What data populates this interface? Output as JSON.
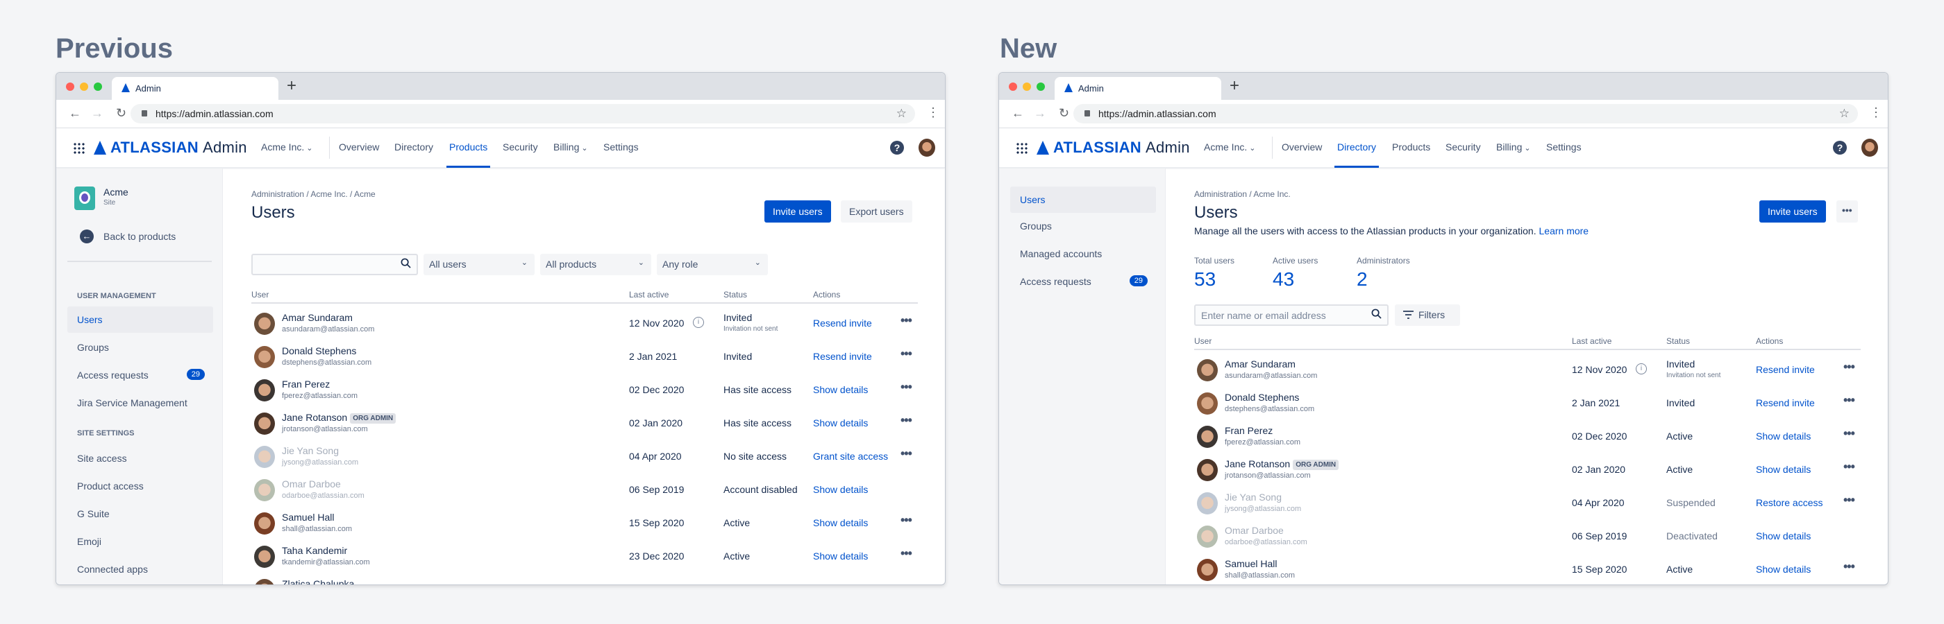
{
  "labels": {
    "previous": "Previous",
    "new": "New"
  },
  "browser": {
    "tab_title": "Admin",
    "new_tab": "+",
    "url": "https://admin.atlassian.com"
  },
  "header": {
    "logo": "ATLASSIAN",
    "logo_suffix": "Admin",
    "org": "Acme Inc.",
    "nav": [
      "Overview",
      "Directory",
      "Products",
      "Security",
      "Billing",
      "Settings"
    ],
    "help": "?"
  },
  "colors": {
    "brand": "#0052cc"
  },
  "previous": {
    "active_nav": "Products",
    "sidebar": {
      "site_name": "Acme",
      "site_type": "Site",
      "back": "Back to products",
      "section1": "USER MANAGEMENT",
      "items1": [
        "Users",
        "Groups",
        "Access requests",
        "Jira Service Management"
      ],
      "access_badge": "29",
      "section2": "SITE SETTINGS",
      "items2": [
        "Site access",
        "Product access",
        "G Suite",
        "Emoji",
        "Connected apps"
      ]
    },
    "breadcrumb": "Administration / Acme Inc. / Acme",
    "title": "Users",
    "invite": "Invite users",
    "export": "Export users",
    "search_value": "",
    "filters": [
      "All users",
      "All products",
      "Any role"
    ],
    "columns": [
      "User",
      "Last active",
      "Status",
      "Actions"
    ],
    "rows": [
      {
        "name": "Amar Sundaram",
        "email": "asundaram@atlassian.com",
        "last": "12 Nov 2020",
        "info": true,
        "status": "Invited",
        "sub": "Invitation not sent",
        "action": "Resend invite",
        "more": true,
        "color": "#6b4f3a"
      },
      {
        "name": "Donald Stephens",
        "email": "dstephens@atlassian.com",
        "last": "2 Jan 2021",
        "status": "Invited",
        "action": "Resend invite",
        "more": true,
        "color": "#8a5a3c"
      },
      {
        "name": "Fran Perez",
        "email": "fperez@atlassian.com",
        "last": "02 Dec 2020",
        "status": "Has site access",
        "action": "Show details",
        "more": true,
        "color": "#3b3532"
      },
      {
        "name": "Jane Rotanson",
        "badge": "ORG ADMIN",
        "email": "jrotanson@atlassian.com",
        "last": "02 Jan 2020",
        "status": "Has site access",
        "action": "Show details",
        "more": true,
        "color": "#4a3428"
      },
      {
        "name": "Jie Yan Song",
        "email": "jysong@atlassian.com",
        "last": "04 Apr 2020",
        "status": "No site access",
        "action": "Grant site access",
        "more": true,
        "dim": true,
        "color": "#8a9bb0"
      },
      {
        "name": "Omar Darboe",
        "email": "odarboe@atlassian.com",
        "last": "06 Sep 2019",
        "status": "Account disabled",
        "action": "Show details",
        "more": false,
        "dim": true,
        "color": "#7a8a70"
      },
      {
        "name": "Samuel Hall",
        "email": "shall@atlassian.com",
        "last": "15 Sep 2020",
        "status": "Active",
        "action": "Show details",
        "more": true,
        "color": "#7a3e24"
      },
      {
        "name": "Taha Kandemir",
        "email": "tkandemir@atlassian.com",
        "last": "23 Dec 2020",
        "status": "Active",
        "action": "Show details",
        "more": true,
        "color": "#3e3a36"
      },
      {
        "name": "Zlatica Chalupka",
        "email": "",
        "last": "",
        "status": "",
        "action": "",
        "more": false,
        "color": "#6b4a35"
      }
    ]
  },
  "new": {
    "active_nav": "Directory",
    "sidebar": {
      "items": [
        "Users",
        "Groups",
        "Managed accounts",
        "Access requests"
      ],
      "access_badge": "29"
    },
    "breadcrumb": "Administration / Acme Inc.",
    "title": "Users",
    "invite": "Invite users",
    "more": "•••",
    "description": "Manage all the users with access to the Atlassian products in your organization.",
    "learn_more": "Learn more",
    "stats": [
      {
        "label": "Total users",
        "value": "53"
      },
      {
        "label": "Active users",
        "value": "43"
      },
      {
        "label": "Administrators",
        "value": "2"
      }
    ],
    "search_placeholder": "Enter name or email address",
    "filters": "Filters",
    "columns": [
      "User",
      "Last active",
      "Status",
      "Actions"
    ],
    "rows": [
      {
        "name": "Amar Sundaram",
        "email": "asundaram@atlassian.com",
        "last": "12 Nov 2020",
        "info": true,
        "status": "Invited",
        "sub": "Invitation not sent",
        "action": "Resend invite",
        "more": true,
        "color": "#6b4f3a"
      },
      {
        "name": "Donald Stephens",
        "email": "dstephens@atlassian.com",
        "last": "2 Jan 2021",
        "status": "Invited",
        "action": "Resend invite",
        "more": true,
        "color": "#8a5a3c"
      },
      {
        "name": "Fran Perez",
        "email": "fperez@atlassian.com",
        "last": "02 Dec 2020",
        "status": "Active",
        "action": "Show details",
        "more": true,
        "color": "#3b3532"
      },
      {
        "name": "Jane Rotanson",
        "badge": "ORG ADMIN",
        "email": "jrotanson@atlassian.com",
        "last": "02 Jan 2020",
        "status": "Active",
        "action": "Show details",
        "more": true,
        "color": "#4a3428"
      },
      {
        "name": "Jie Yan Song",
        "email": "jysong@atlassian.com",
        "last": "04 Apr 2020",
        "status": "Suspended",
        "muted": true,
        "action": "Restore access",
        "more": true,
        "dim": true,
        "color": "#8a9bb0"
      },
      {
        "name": "Omar Darboe",
        "email": "odarboe@atlassian.com",
        "last": "06 Sep 2019",
        "status": "Deactivated",
        "muted": true,
        "action": "Show details",
        "more": false,
        "dim": true,
        "color": "#7a8a70"
      },
      {
        "name": "Samuel Hall",
        "email": "shall@atlassian.com",
        "last": "15 Sep 2020",
        "status": "Active",
        "action": "Show details",
        "more": true,
        "color": "#7a3e24"
      }
    ]
  }
}
